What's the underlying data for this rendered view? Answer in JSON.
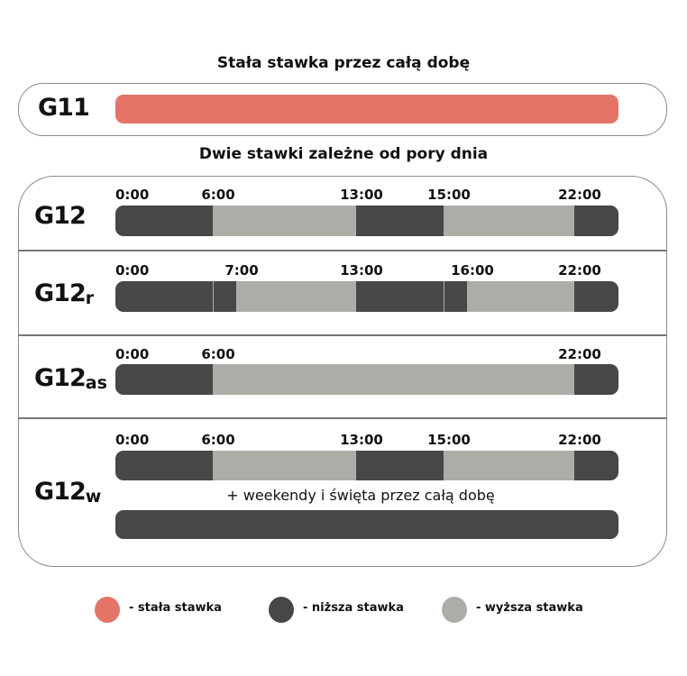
{
  "colors": {
    "fixed": "#e57368",
    "low": "#474747",
    "high": "#adada8"
  },
  "section1_title": "Stała stawka przez całą dobę",
  "section2_title": "Dwie stawki zależne od pory dnia",
  "tariffs": [
    {
      "code": "G11",
      "sub": "",
      "segments": [
        {
          "from": 0,
          "to": 24,
          "rate": "fixed"
        }
      ],
      "hour_labels": []
    },
    {
      "code": "G12",
      "sub": "",
      "hour_labels": [
        "0:00",
        "6:00",
        "13:00",
        "15:00",
        "22:00"
      ],
      "segments": [
        {
          "from": 0,
          "to": 6,
          "rate": "low"
        },
        {
          "from": 6,
          "to": 13,
          "rate": "high"
        },
        {
          "from": 13,
          "to": 15,
          "rate": "low"
        },
        {
          "from": 15,
          "to": 22,
          "rate": "high"
        },
        {
          "from": 22,
          "to": 24,
          "rate": "low"
        }
      ]
    },
    {
      "code": "G12",
      "sub": "r",
      "hour_labels": [
        "0:00",
        "7:00",
        "13:00",
        "16:00",
        "22:00"
      ],
      "segments": [
        {
          "from": 0,
          "to": 6,
          "rate": "low"
        },
        {
          "from": 6,
          "to": 7,
          "rate": "low"
        },
        {
          "from": 7,
          "to": 13,
          "rate": "high"
        },
        {
          "from": 13,
          "to": 15,
          "rate": "low"
        },
        {
          "from": 15,
          "to": 16,
          "rate": "low"
        },
        {
          "from": 16,
          "to": 22,
          "rate": "high"
        },
        {
          "from": 22,
          "to": 24,
          "rate": "low"
        }
      ]
    },
    {
      "code": "G12",
      "sub": "as",
      "hour_labels": [
        "0:00",
        "6:00",
        "22:00"
      ],
      "segments": [
        {
          "from": 0,
          "to": 6,
          "rate": "low"
        },
        {
          "from": 6,
          "to": 22,
          "rate": "high"
        },
        {
          "from": 22,
          "to": 24,
          "rate": "low"
        }
      ]
    },
    {
      "code": "G12",
      "sub": "w",
      "hour_labels": [
        "0:00",
        "6:00",
        "13:00",
        "15:00",
        "22:00"
      ],
      "segments": [
        {
          "from": 0,
          "to": 6,
          "rate": "low"
        },
        {
          "from": 6,
          "to": 13,
          "rate": "high"
        },
        {
          "from": 13,
          "to": 15,
          "rate": "low"
        },
        {
          "from": 15,
          "to": 22,
          "rate": "high"
        },
        {
          "from": 22,
          "to": 24,
          "rate": "low"
        }
      ],
      "note": "+ weekendy i święta przez całą dobę",
      "weekend_segments": [
        {
          "from": 0,
          "to": 24,
          "rate": "low"
        }
      ]
    }
  ],
  "legend": [
    {
      "rate": "fixed",
      "label": "- stała stawka"
    },
    {
      "rate": "low",
      "label": "- niższa stawka"
    },
    {
      "rate": "high",
      "label": "- wyższa stawka"
    }
  ]
}
